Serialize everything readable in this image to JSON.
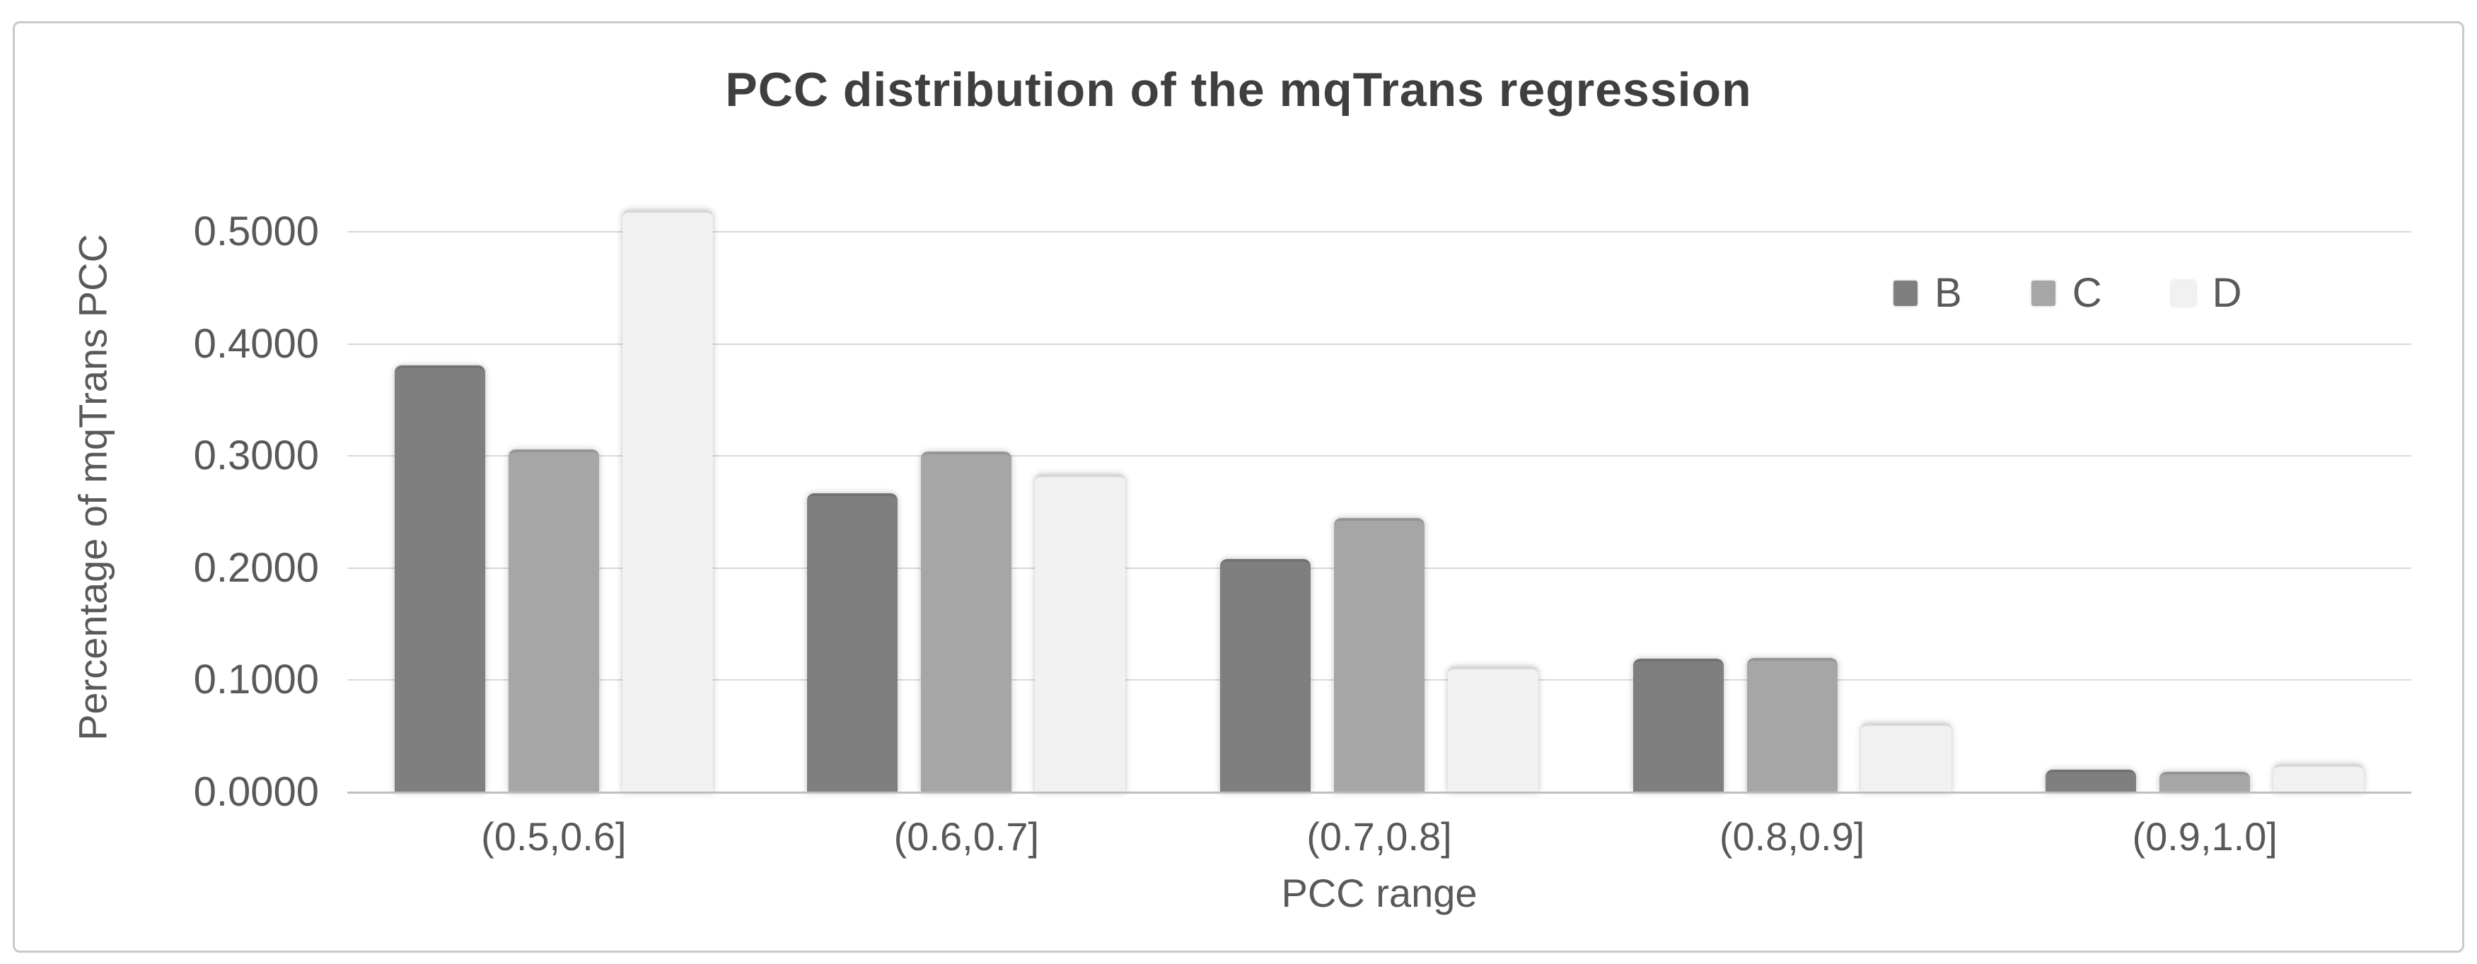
{
  "chart_data": {
    "type": "bar",
    "title": "PCC distribution of the mqTrans regression",
    "xlabel": "PCC range",
    "ylabel": "Percentage of mqTrans PCC",
    "categories": [
      "(0.5,0.6]",
      "(0.6,0.7]",
      "(0.7,0.8]",
      "(0.8,0.9]",
      "(0.9,1.0]"
    ],
    "series": [
      {
        "name": "B",
        "color": "#7f7f7f",
        "values": [
          0.381,
          0.267,
          0.208,
          0.119,
          0.02
        ]
      },
      {
        "name": "C",
        "color": "#a6a6a6",
        "values": [
          0.306,
          0.304,
          0.245,
          0.12,
          0.018
        ]
      },
      {
        "name": "D",
        "color": "#f1f1f1",
        "values": [
          0.52,
          0.284,
          0.112,
          0.062,
          0.025
        ]
      }
    ],
    "ylim": [
      0,
      0.55
    ],
    "y_ticks": [
      0.0,
      0.1,
      0.2,
      0.3,
      0.4,
      0.5
    ],
    "y_tick_labels": [
      "0.0000",
      "0.1000",
      "0.2000",
      "0.3000",
      "0.4000",
      "0.5000"
    ],
    "grid": "horizontal",
    "gridline_color": "#d9d9d9",
    "axis_line_color": "#bfbfbf",
    "legend_position": "inside-top-right",
    "legend": [
      "B",
      "C",
      "D"
    ],
    "title_color": "#3f3f3f",
    "text_color": "#595959",
    "frame_border_color": "#c9c9c9",
    "background": "#ffffff"
  }
}
